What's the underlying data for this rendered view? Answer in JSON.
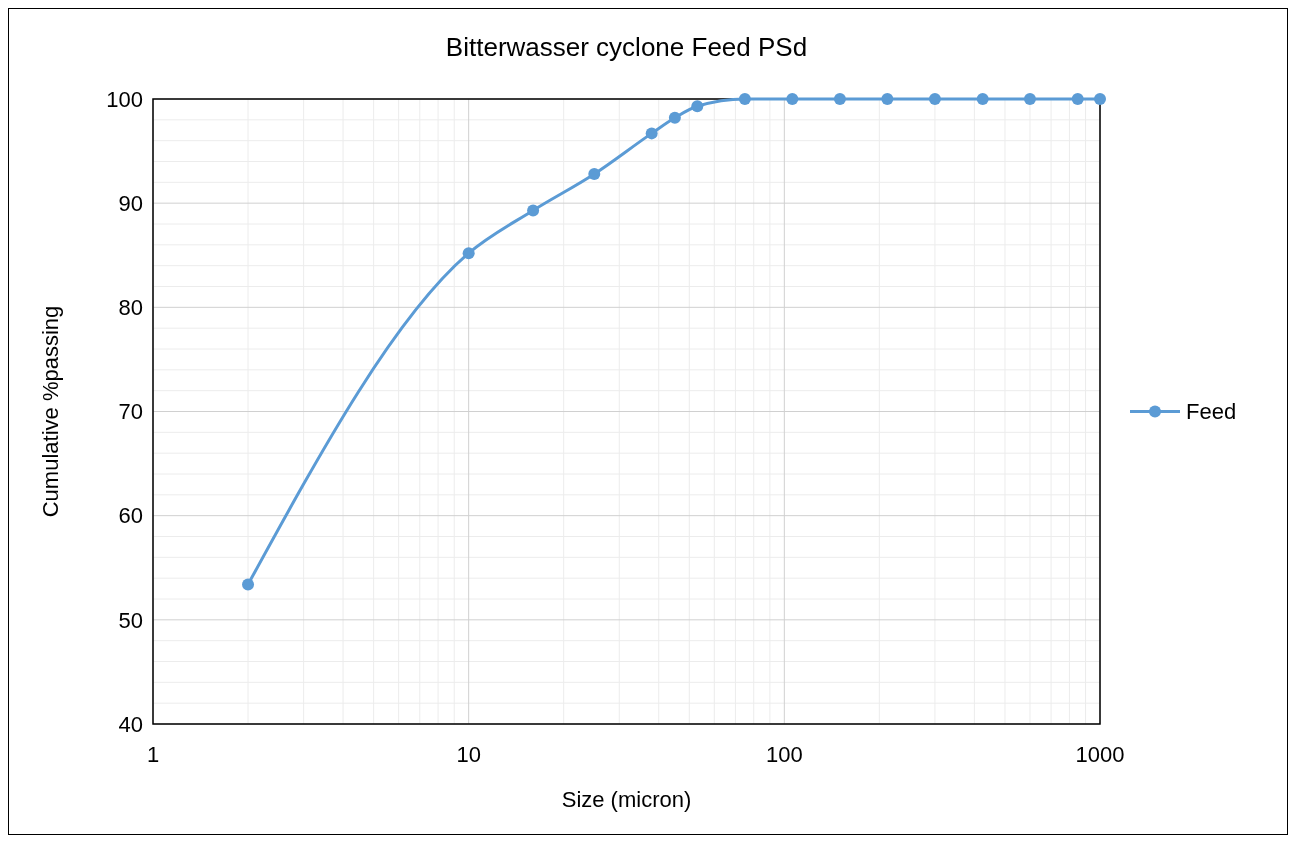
{
  "chart_data": {
    "type": "line",
    "title": "Bitterwasser cyclone Feed PSd",
    "xlabel": "Size (micron)",
    "ylabel": "Cumulative %passing",
    "log": "x",
    "xlim": [
      1,
      1000
    ],
    "xticks": [
      1,
      10,
      100,
      1000
    ],
    "ylim": [
      40,
      100
    ],
    "yticks": [
      40,
      50,
      60,
      70,
      80,
      90,
      100
    ],
    "grid": true,
    "legend": "right",
    "marker": "circle",
    "line_style": "solid",
    "series": [
      {
        "name": "Feed",
        "color": "#5b9bd5",
        "x": [
          2,
          10,
          16,
          25,
          38,
          45,
          53,
          75,
          106,
          150,
          212,
          300,
          425,
          600,
          850,
          1000
        ],
        "values": [
          53.4,
          85.2,
          89.3,
          92.8,
          96.7,
          98.2,
          99.3,
          100,
          100,
          100,
          100,
          100,
          100,
          100,
          100,
          100
        ]
      }
    ]
  }
}
